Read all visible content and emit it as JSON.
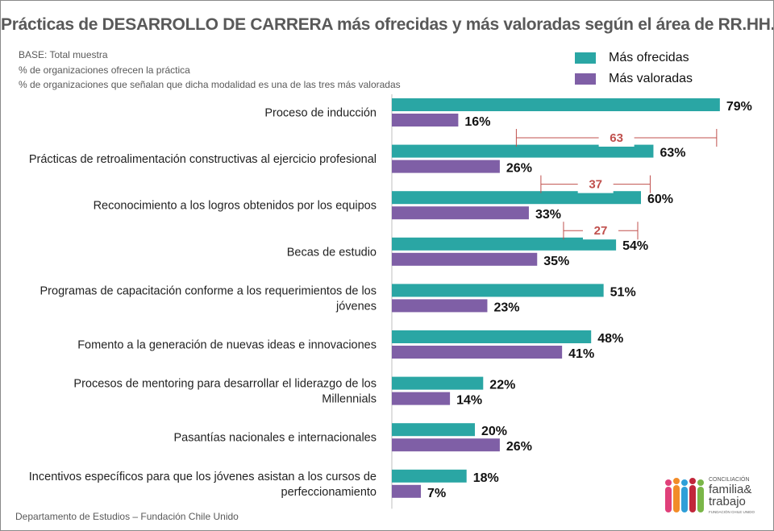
{
  "title": "Prácticas de DESARROLLO DE CARRERA más ofrecidas y más valoradas según el área de RR.HH.",
  "base_notes": [
    "BASE:  Total muestra",
    "%  de organizaciones ofrecen la práctica",
    "% de organizaciones que señalan que dicha modalidad es una de las tres más valoradas"
  ],
  "footer": "Departamento de Estudios – Fundación Chile Unido",
  "logo": {
    "line1": "CONCILIACIÓN",
    "line2": "familia&",
    "line3": "trabajo",
    "line4": "FUNDACIÓN CHILE UNIDO"
  },
  "colors": {
    "offered": "#2aa6a4",
    "valued": "#7f5fa6",
    "gap": "#c0504d"
  },
  "chart_data": {
    "type": "bar",
    "orientation": "horizontal",
    "unit": "%",
    "xlim": [
      0,
      80
    ],
    "legend_position": "top-right",
    "categories": [
      [
        "Proceso de inducción"
      ],
      [
        "Prácticas de retroalimentación constructivas al ejercicio profesional"
      ],
      [
        "Reconocimiento a los logros obtenidos por los equipos"
      ],
      [
        "Becas de estudio"
      ],
      [
        "Programas de capacitación conforme a los requerimientos de los",
        "jóvenes"
      ],
      [
        "Fomento a la generación de nuevas ideas e innovaciones"
      ],
      [
        "Procesos de mentoring para desarrollar el liderazgo de los",
        "Millennials"
      ],
      [
        "Pasantías nacionales e internacionales"
      ],
      [
        "Incentivos específicos para que los jóvenes asistan a los cursos de",
        "perfeccionamiento"
      ]
    ],
    "series": [
      {
        "name": "Más ofrecidas",
        "values": [
          79,
          63,
          60,
          54,
          51,
          48,
          22,
          20,
          18
        ]
      },
      {
        "name": "Más valoradas",
        "values": [
          16,
          26,
          33,
          35,
          23,
          41,
          14,
          26,
          7
        ]
      }
    ],
    "gap_annotations": [
      {
        "category_index": 0,
        "value": "63"
      },
      {
        "category_index": 1,
        "value": "37"
      },
      {
        "category_index": 2,
        "value": "27"
      }
    ]
  }
}
